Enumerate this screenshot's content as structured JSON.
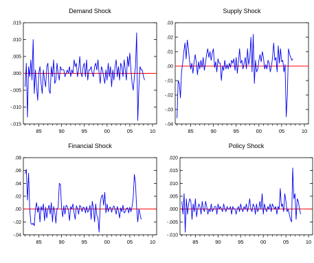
{
  "colors": {
    "series": "#0000ee",
    "zero_line": "#ff0000",
    "axis": "#000000"
  },
  "chart_data": [
    {
      "type": "line",
      "title": "Demand Shock",
      "x_range": [
        1981.6,
        2010.9
      ],
      "x_ticks": [
        1985,
        1990,
        1995,
        2000,
        2005,
        2010
      ],
      "x_tick_labels": [
        "85",
        "90",
        "95",
        "00",
        "05",
        "10"
      ],
      "ylim": [
        -0.015,
        0.015
      ],
      "y_ticks": [
        -0.015,
        -0.01,
        -0.005,
        0.0,
        0.005,
        0.01,
        0.015
      ],
      "y_tick_labels": [
        "-.015",
        "-.010",
        "-.005",
        ".000",
        ".005",
        ".010",
        ".015"
      ],
      "reference_line": 0,
      "series": [
        {
          "x_start": 1982.0,
          "x_step": 0.25,
          "values": [
            -0.004,
            0.003,
            -0.013,
            0.002,
            -0.001,
            0.004,
            -0.002,
            0.01,
            -0.006,
            0.001,
            -0.004,
            -0.008,
            0.0,
            0.002,
            -0.003,
            -0.006,
            0.001,
            -0.002,
            -0.004,
            0.002,
            0.003,
            -0.005,
            -0.006,
            0.002,
            -0.001,
            0.004,
            -0.003,
            -0.002,
            0.003,
            0.0,
            -0.002,
            0.002,
            0.001,
            0.001,
            0.001,
            -0.001,
            0.0,
            0.001,
            0.0,
            0.002,
            -0.001,
            0.001,
            0.0,
            0.004,
            0.002,
            0.003,
            -0.001,
            0.001,
            0.005,
            0.0,
            -0.001,
            0.002,
            0.003,
            -0.001,
            0.004,
            -0.002,
            0.001,
            0.001,
            0.002,
            0.0,
            -0.001,
            0.002,
            0.003,
            0.001,
            0.004,
            0.0,
            -0.003,
            0.002,
            0.001,
            -0.001,
            -0.003,
            0.001,
            -0.002,
            0.003,
            -0.001,
            0.002,
            -0.004,
            0.001,
            -0.002,
            0.002,
            0.004,
            -0.001,
            0.002,
            -0.002,
            0.003,
            0.002,
            -0.001,
            0.004,
            0.001,
            -0.002,
            0.005,
            0.002,
            0.006,
            0.001,
            -0.003,
            -0.005,
            -0.001,
            0.002,
            0.012,
            -0.014,
            -0.004,
            0.002,
            0.001,
            0.001,
            -0.001,
            -0.002
          ]
        }
      ]
    },
    {
      "type": "line",
      "title": "Supply Shock",
      "x_range": [
        1981.6,
        2010.9
      ],
      "x_ticks": [
        1985,
        1990,
        1995,
        2000,
        2005,
        2010
      ],
      "x_tick_labels": [
        "85",
        "90",
        "95",
        "00",
        "05",
        "10"
      ],
      "ylim": [
        -0.04,
        0.03
      ],
      "y_ticks": [
        -0.04,
        -0.03,
        -0.02,
        -0.01,
        0.0,
        0.01,
        0.02,
        0.03
      ],
      "y_tick_labels": [
        "-.04",
        "-.03",
        "-.02",
        "-.01",
        ".00",
        ".01",
        ".02",
        ".03"
      ],
      "reference_line": 0,
      "series": [
        {
          "x_start": 1982.0,
          "x_step": 0.25,
          "values": [
            -0.036,
            -0.01,
            -0.012,
            -0.022,
            -0.004,
            0.002,
            0.01,
            0.016,
            0.005,
            0.018,
            0.012,
            0.004,
            -0.002,
            0.002,
            -0.005,
            0.003,
            0.008,
            0.002,
            -0.006,
            0.003,
            -0.002,
            0.004,
            -0.001,
            0.006,
            -0.003,
            0.002,
            0.008,
            0.012,
            0.006,
            0.01,
            0.004,
            0.009,
            0.012,
            -0.001,
            0.003,
            -0.004,
            0.005,
            0.002,
            0.002,
            -0.01,
            0.0,
            -0.003,
            0.004,
            -0.002,
            0.001,
            -0.002,
            0.002,
            -0.001,
            0.004,
            0.002,
            0.005,
            -0.003,
            0.006,
            -0.005,
            0.003,
            0.012,
            0.002,
            0.004,
            -0.002,
            0.002,
            0.006,
            -0.002,
            0.012,
            0.001,
            0.006,
            0.02,
            -0.004,
            0.022,
            -0.012,
            0.004,
            -0.004,
            -0.002,
            0.004,
            0.008,
            0.003,
            0.01,
            0.006,
            -0.002,
            0.001,
            -0.002,
            0.004,
            0.002,
            -0.004,
            0.0,
            0.006,
            0.016,
            0.004,
            0.006,
            -0.004,
            0.014,
            0.002,
            0.012,
            0.003,
            0.004,
            -0.004,
            0.001,
            -0.035,
            -0.02,
            0.012,
            0.008,
            0.006,
            0.004,
            0.005
          ]
        }
      ]
    },
    {
      "type": "line",
      "title": "Financial Shock",
      "x_range": [
        1981.6,
        2010.9
      ],
      "x_ticks": [
        1985,
        1990,
        1995,
        2000,
        2005,
        2010
      ],
      "x_tick_labels": [
        "85",
        "90",
        "95",
        "00",
        "05",
        "10"
      ],
      "ylim": [
        -0.04,
        0.08
      ],
      "y_ticks": [
        -0.04,
        -0.02,
        0.0,
        0.02,
        0.04,
        0.06,
        0.08
      ],
      "y_tick_labels": [
        "-.04",
        "-.02",
        ".00",
        ".02",
        ".04",
        ".06",
        ".08"
      ],
      "reference_line": 0,
      "series": [
        {
          "x_start": 1982.0,
          "x_step": 0.25,
          "values": [
            0.055,
            0.062,
            0.014,
            0.056,
            0.0,
            -0.022,
            -0.024,
            -0.022,
            -0.026,
            0.0,
            0.01,
            -0.005,
            0.004,
            -0.02,
            0.004,
            -0.002,
            0.008,
            -0.018,
            0.003,
            -0.014,
            0.0,
            0.006,
            -0.008,
            0.01,
            -0.02,
            0.004,
            -0.004,
            -0.022,
            0.001,
            0.002,
            0.04,
            0.038,
            0.002,
            -0.012,
            0.005,
            -0.008,
            0.006,
            0.004,
            -0.002,
            -0.018,
            0.004,
            0.0,
            0.008,
            -0.006,
            -0.016,
            0.005,
            0.001,
            -0.008,
            0.006,
            0.003,
            -0.004,
            0.003,
            0.002,
            -0.006,
            0.004,
            -0.005,
            -0.002,
            0.006,
            -0.016,
            0.012,
            0.001,
            -0.02,
            0.008,
            -0.01,
            -0.014,
            -0.036,
            0.008,
            0.02,
            0.022,
            0.006,
            0.026,
            -0.006,
            0.008,
            -0.004,
            0.002,
            0.003,
            -0.005,
            0.002,
            0.005,
            0.0,
            -0.008,
            0.004,
            -0.003,
            -0.014,
            0.002,
            -0.004,
            0.006,
            -0.006,
            -0.004,
            0.001,
            0.002,
            -0.006,
            0.003,
            -0.004,
            0.004,
            0.018,
            0.054,
            0.04,
            0.002,
            -0.02,
            0.0,
            -0.008,
            -0.016
          ]
        }
      ]
    },
    {
      "type": "line",
      "title": "Policy Shock",
      "x_range": [
        1981.6,
        2010.9
      ],
      "x_ticks": [
        1985,
        1990,
        1995,
        2000,
        2005,
        2010
      ],
      "x_tick_labels": [
        "85",
        "90",
        "95",
        "00",
        "05",
        "10"
      ],
      "ylim": [
        -0.01,
        0.02
      ],
      "y_ticks": [
        -0.01,
        -0.005,
        0.0,
        0.005,
        0.01,
        0.015,
        0.02
      ],
      "y_tick_labels": [
        "-.010",
        "-.005",
        ".000",
        ".005",
        ".010",
        ".015",
        ".020"
      ],
      "reference_line": 0,
      "series": [
        {
          "x_start": 1982.0,
          "x_step": 0.25,
          "values": [
            0.003,
            -0.002,
            0.006,
            -0.009,
            0.004,
            -0.002,
            0.002,
            0.004,
            0.003,
            -0.004,
            0.002,
            -0.001,
            0.004,
            -0.003,
            0.0,
            0.002,
            0.001,
            -0.002,
            0.003,
            0.0,
            -0.001,
            0.003,
            0.001,
            -0.002,
            0.0,
            -0.001,
            0.002,
            -0.001,
            0.0,
            0.001,
            0.001,
            -0.002,
            0.002,
            0.0,
            0.001,
            0.0,
            -0.001,
            0.002,
            0.0,
            -0.001,
            0.001,
            0.0,
            0.0,
            0.001,
            -0.002,
            0.001,
            0.0,
            0.0,
            -0.002,
            0.0,
            0.001,
            -0.001,
            0.002,
            0.0,
            -0.001,
            0.001,
            0.0,
            0.002,
            -0.001,
            0.001,
            0.004,
            0.0,
            -0.001,
            0.002,
            0.001,
            -0.002,
            0.002,
            -0.001,
            0.0,
            0.003,
            0.0,
            0.006,
            -0.002,
            0.002,
            0.0,
            -0.001,
            0.001,
            0.0,
            0.002,
            -0.001,
            0.002,
            0.001,
            0.0,
            0.001,
            -0.002,
            0.001,
            0.0,
            0.008,
            0.001,
            0.002,
            -0.001,
            0.006,
            0.003,
            -0.001,
            0.0,
            -0.002,
            -0.004,
            -0.005,
            0.016,
            0.004,
            0.006,
            -0.004,
            0.004,
            0.003,
            0.0,
            -0.002
          ]
        }
      ]
    }
  ]
}
